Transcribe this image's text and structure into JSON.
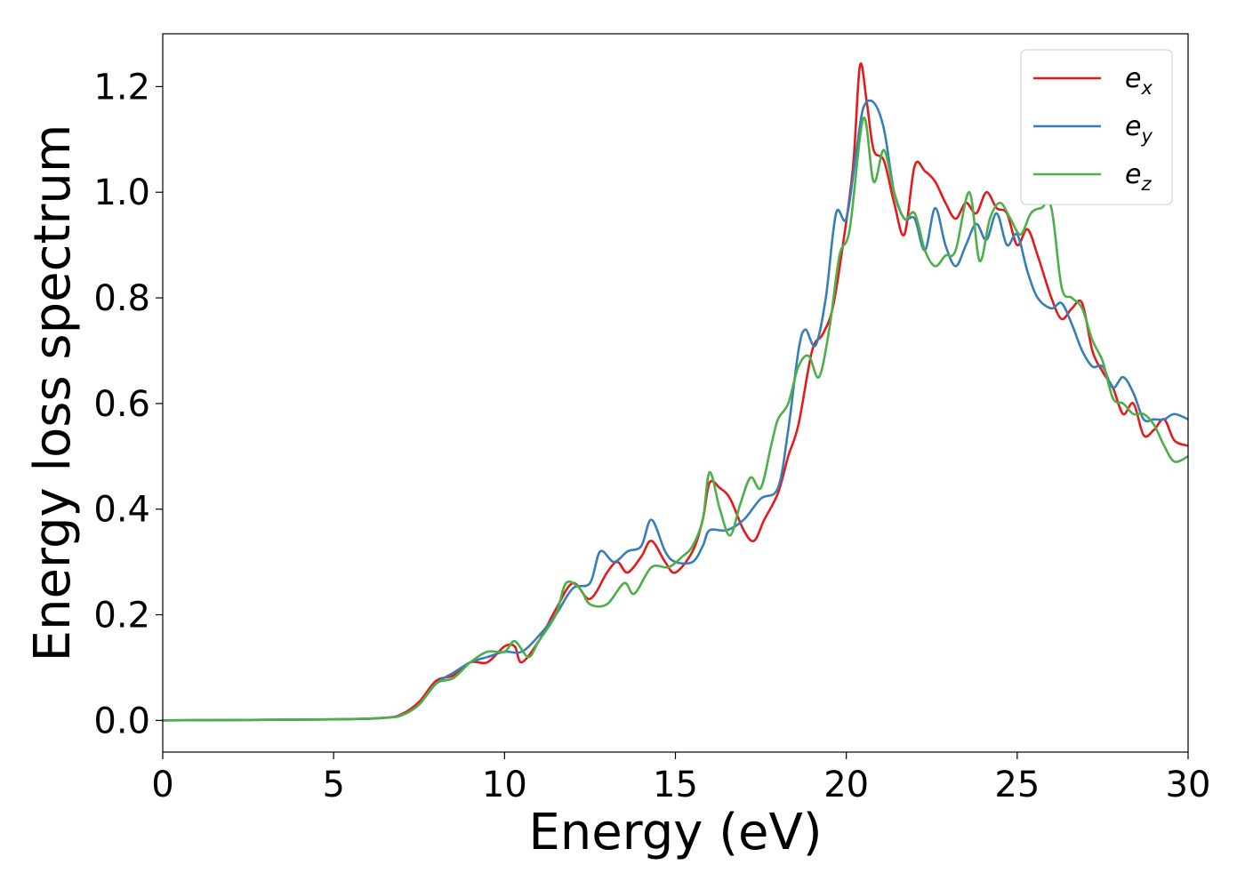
{
  "chart_data": {
    "type": "line",
    "xlabel": "Energy (eV)",
    "ylabel": "Energy loss spectrum",
    "xlim": [
      0,
      30
    ],
    "ylim": [
      -0.06,
      1.3
    ],
    "xticks": [
      0,
      5,
      10,
      15,
      20,
      25,
      30
    ],
    "yticks": [
      0.0,
      0.2,
      0.4,
      0.6,
      0.8,
      1.0,
      1.2
    ],
    "xtick_labels": [
      "0",
      "5",
      "10",
      "15",
      "20",
      "25",
      "30"
    ],
    "ytick_labels": [
      "0.0",
      "0.2",
      "0.4",
      "0.6",
      "0.8",
      "1.0",
      "1.2"
    ],
    "grid": false,
    "legend_position": "top-right",
    "series": [
      {
        "name": "e_x",
        "base": "e",
        "sub": "x",
        "color": "#e41a1c",
        "points": [
          [
            0,
            0
          ],
          [
            5,
            0.002
          ],
          [
            6.5,
            0.005
          ],
          [
            7,
            0.012
          ],
          [
            7.5,
            0.035
          ],
          [
            8,
            0.075
          ],
          [
            8.5,
            0.085
          ],
          [
            9,
            0.11
          ],
          [
            9.5,
            0.11
          ],
          [
            10,
            0.14
          ],
          [
            10.3,
            0.14
          ],
          [
            10.5,
            0.11
          ],
          [
            11,
            0.15
          ],
          [
            11.5,
            0.21
          ],
          [
            12,
            0.26
          ],
          [
            12.5,
            0.23
          ],
          [
            13,
            0.28
          ],
          [
            13.3,
            0.3
          ],
          [
            13.6,
            0.28
          ],
          [
            14,
            0.31
          ],
          [
            14.3,
            0.34
          ],
          [
            14.7,
            0.3
          ],
          [
            15,
            0.28
          ],
          [
            15.5,
            0.32
          ],
          [
            15.8,
            0.38
          ],
          [
            16,
            0.45
          ],
          [
            16.3,
            0.44
          ],
          [
            16.6,
            0.42
          ],
          [
            17,
            0.36
          ],
          [
            17.3,
            0.34
          ],
          [
            17.6,
            0.38
          ],
          [
            18,
            0.43
          ],
          [
            18.3,
            0.5
          ],
          [
            18.6,
            0.56
          ],
          [
            19,
            0.7
          ],
          [
            19.3,
            0.73
          ],
          [
            19.6,
            0.78
          ],
          [
            19.9,
            0.9
          ],
          [
            20.2,
            1.05
          ],
          [
            20.4,
            1.24
          ],
          [
            20.6,
            1.17
          ],
          [
            20.8,
            1.08
          ],
          [
            21.1,
            1.06
          ],
          [
            21.4,
            0.98
          ],
          [
            21.7,
            0.92
          ],
          [
            22,
            1.05
          ],
          [
            22.3,
            1.04
          ],
          [
            22.6,
            1.02
          ],
          [
            22.9,
            0.98
          ],
          [
            23.2,
            0.95
          ],
          [
            23.5,
            0.98
          ],
          [
            23.8,
            0.96
          ],
          [
            24.1,
            1.0
          ],
          [
            24.4,
            0.97
          ],
          [
            24.7,
            0.96
          ],
          [
            25,
            0.9
          ],
          [
            25.3,
            0.93
          ],
          [
            25.6,
            0.88
          ],
          [
            26,
            0.8
          ],
          [
            26.3,
            0.76
          ],
          [
            26.6,
            0.78
          ],
          [
            26.9,
            0.79
          ],
          [
            27.2,
            0.7
          ],
          [
            27.5,
            0.66
          ],
          [
            27.8,
            0.63
          ],
          [
            28.1,
            0.58
          ],
          [
            28.4,
            0.6
          ],
          [
            28.7,
            0.54
          ],
          [
            29,
            0.55
          ],
          [
            29.3,
            0.57
          ],
          [
            29.6,
            0.53
          ],
          [
            30,
            0.52
          ]
        ]
      },
      {
        "name": "e_y",
        "base": "e",
        "sub": "y",
        "color": "#377eb8",
        "points": [
          [
            0,
            0
          ],
          [
            5,
            0.002
          ],
          [
            6.5,
            0.005
          ],
          [
            7,
            0.01
          ],
          [
            7.5,
            0.03
          ],
          [
            8,
            0.07
          ],
          [
            8.5,
            0.09
          ],
          [
            9,
            0.11
          ],
          [
            9.5,
            0.12
          ],
          [
            10,
            0.13
          ],
          [
            10.5,
            0.13
          ],
          [
            11,
            0.16
          ],
          [
            11.5,
            0.2
          ],
          [
            12,
            0.25
          ],
          [
            12.5,
            0.26
          ],
          [
            12.8,
            0.32
          ],
          [
            13.2,
            0.3
          ],
          [
            13.6,
            0.32
          ],
          [
            14,
            0.33
          ],
          [
            14.3,
            0.38
          ],
          [
            14.7,
            0.32
          ],
          [
            15,
            0.3
          ],
          [
            15.5,
            0.3
          ],
          [
            15.8,
            0.33
          ],
          [
            16,
            0.36
          ],
          [
            16.5,
            0.36
          ],
          [
            17,
            0.38
          ],
          [
            17.5,
            0.42
          ],
          [
            18,
            0.44
          ],
          [
            18.3,
            0.55
          ],
          [
            18.6,
            0.7
          ],
          [
            18.8,
            0.74
          ],
          [
            19.1,
            0.71
          ],
          [
            19.4,
            0.8
          ],
          [
            19.7,
            0.96
          ],
          [
            20,
            0.95
          ],
          [
            20.3,
            1.08
          ],
          [
            20.5,
            1.16
          ],
          [
            20.8,
            1.17
          ],
          [
            21.1,
            1.12
          ],
          [
            21.4,
            1.0
          ],
          [
            21.7,
            0.95
          ],
          [
            22,
            0.95
          ],
          [
            22.3,
            0.89
          ],
          [
            22.6,
            0.97
          ],
          [
            22.9,
            0.9
          ],
          [
            23.2,
            0.86
          ],
          [
            23.5,
            0.9
          ],
          [
            23.8,
            0.94
          ],
          [
            24.1,
            0.91
          ],
          [
            24.4,
            0.96
          ],
          [
            24.7,
            0.9
          ],
          [
            25,
            0.92
          ],
          [
            25.3,
            0.85
          ],
          [
            25.6,
            0.8
          ],
          [
            26,
            0.78
          ],
          [
            26.3,
            0.79
          ],
          [
            26.6,
            0.75
          ],
          [
            26.9,
            0.7
          ],
          [
            27.2,
            0.67
          ],
          [
            27.5,
            0.67
          ],
          [
            27.8,
            0.63
          ],
          [
            28.1,
            0.65
          ],
          [
            28.4,
            0.62
          ],
          [
            28.7,
            0.57
          ],
          [
            29,
            0.57
          ],
          [
            29.3,
            0.57
          ],
          [
            29.6,
            0.58
          ],
          [
            30,
            0.57
          ]
        ]
      },
      {
        "name": "e_z",
        "base": "e",
        "sub": "z",
        "color": "#4daf4a",
        "points": [
          [
            0,
            0
          ],
          [
            5,
            0.002
          ],
          [
            6.5,
            0.005
          ],
          [
            7,
            0.01
          ],
          [
            7.5,
            0.03
          ],
          [
            8,
            0.07
          ],
          [
            8.5,
            0.08
          ],
          [
            9,
            0.11
          ],
          [
            9.5,
            0.13
          ],
          [
            10,
            0.13
          ],
          [
            10.3,
            0.15
          ],
          [
            10.7,
            0.12
          ],
          [
            11,
            0.15
          ],
          [
            11.5,
            0.2
          ],
          [
            11.8,
            0.26
          ],
          [
            12.2,
            0.25
          ],
          [
            12.5,
            0.22
          ],
          [
            13,
            0.22
          ],
          [
            13.5,
            0.26
          ],
          [
            13.8,
            0.24
          ],
          [
            14.3,
            0.29
          ],
          [
            14.8,
            0.29
          ],
          [
            15.2,
            0.31
          ],
          [
            15.5,
            0.33
          ],
          [
            15.8,
            0.38
          ],
          [
            16,
            0.47
          ],
          [
            16.3,
            0.4
          ],
          [
            16.6,
            0.35
          ],
          [
            16.9,
            0.41
          ],
          [
            17.2,
            0.46
          ],
          [
            17.5,
            0.44
          ],
          [
            17.8,
            0.52
          ],
          [
            18,
            0.57
          ],
          [
            18.3,
            0.6
          ],
          [
            18.6,
            0.67
          ],
          [
            18.9,
            0.69
          ],
          [
            19.2,
            0.65
          ],
          [
            19.5,
            0.74
          ],
          [
            19.8,
            0.88
          ],
          [
            20.1,
            0.93
          ],
          [
            20.5,
            1.14
          ],
          [
            20.8,
            1.02
          ],
          [
            21.1,
            1.08
          ],
          [
            21.4,
            1.0
          ],
          [
            21.7,
            0.95
          ],
          [
            22,
            0.96
          ],
          [
            22.3,
            0.89
          ],
          [
            22.6,
            0.86
          ],
          [
            22.9,
            0.88
          ],
          [
            23.2,
            0.89
          ],
          [
            23.6,
            1.0
          ],
          [
            23.9,
            0.87
          ],
          [
            24.2,
            0.95
          ],
          [
            24.5,
            0.98
          ],
          [
            24.8,
            0.95
          ],
          [
            25.1,
            0.92
          ],
          [
            25.4,
            0.96
          ],
          [
            25.7,
            0.97
          ],
          [
            26,
            0.97
          ],
          [
            26.3,
            0.82
          ],
          [
            26.6,
            0.8
          ],
          [
            26.9,
            0.78
          ],
          [
            27.2,
            0.72
          ],
          [
            27.5,
            0.68
          ],
          [
            27.8,
            0.61
          ],
          [
            28.1,
            0.6
          ],
          [
            28.4,
            0.58
          ],
          [
            28.7,
            0.58
          ],
          [
            29,
            0.56
          ],
          [
            29.3,
            0.52
          ],
          [
            29.6,
            0.49
          ],
          [
            30,
            0.5
          ]
        ]
      }
    ]
  }
}
